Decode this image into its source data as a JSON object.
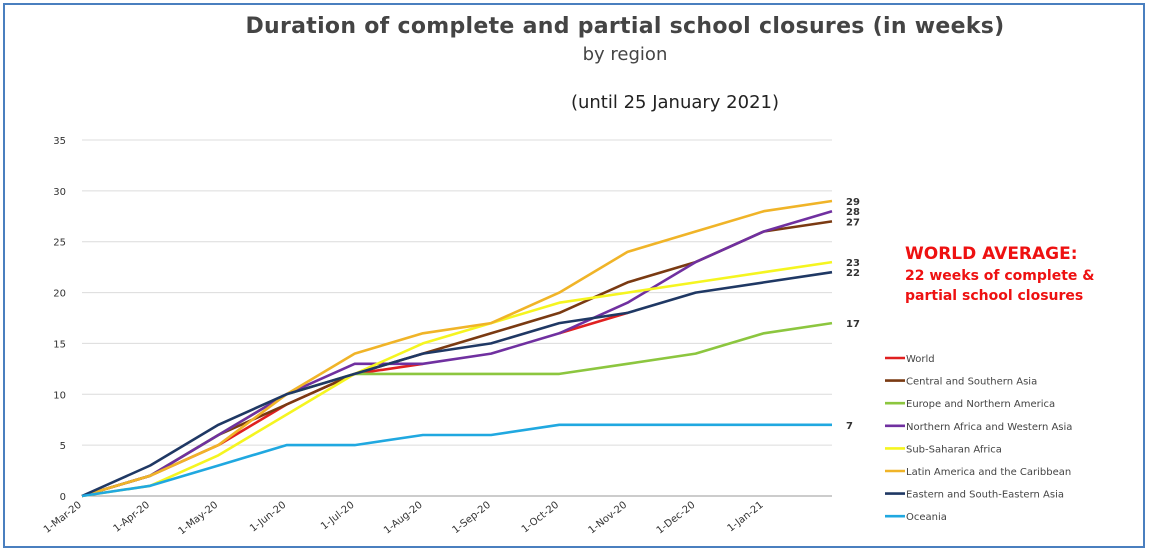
{
  "chart_data": {
    "type": "line",
    "title": "Duration of complete and partial school closures (in weeks)",
    "subtitle": "by region",
    "period_note": "(until 25 January 2021)",
    "x": [
      "1-Mar-20",
      "1-Apr-20",
      "1-May-20",
      "1-Jun-20",
      "1-Jul-20",
      "1-Aug-20",
      "1-Sep-20",
      "1-Oct-20",
      "1-Nov-20",
      "1-Dec-20",
      "1-Jan-21",
      "25-Jan-21"
    ],
    "x_tick_labels": [
      "1-Mar-20",
      "1-Apr-20",
      "1-May-20",
      "1-Jun-20",
      "1-Jul-20",
      "1-Aug-20",
      "1-Sep-20",
      "1-Oct-20",
      "1-Nov-20",
      "1-Dec-20",
      "1-Jan-21"
    ],
    "ylim": [
      0,
      35
    ],
    "yticks": [
      0,
      5,
      10,
      15,
      20,
      25,
      30,
      35
    ],
    "grid": true,
    "legend_position": "right",
    "series": [
      {
        "name": "World",
        "color": "#e02020",
        "values": [
          0,
          2,
          5,
          9,
          12,
          13,
          null,
          16,
          18,
          null,
          null,
          null
        ]
      },
      {
        "name": "Central and Southern Asia",
        "color": "#7a3a12",
        "values": [
          0,
          2,
          6,
          9,
          12,
          14,
          16,
          18,
          21,
          23,
          26,
          27
        ]
      },
      {
        "name": "Europe and Northern America",
        "color": "#8cc63f",
        "values": [
          0,
          2,
          6,
          10,
          12,
          12,
          12,
          12,
          13,
          14,
          16,
          17
        ]
      },
      {
        "name": "Northern Africa and Western Asia",
        "color": "#7030a0",
        "values": [
          0,
          2,
          6,
          10,
          13,
          13,
          14,
          16,
          19,
          23,
          26,
          28
        ]
      },
      {
        "name": "Sub-Saharan Africa",
        "color": "#f5f520",
        "values": [
          0,
          1,
          4,
          8,
          12,
          15,
          17,
          19,
          20,
          21,
          22,
          23
        ]
      },
      {
        "name": "Latin America and the Caribbean",
        "color": "#f0b428",
        "values": [
          0,
          2,
          5,
          10,
          14,
          16,
          17,
          20,
          24,
          26,
          28,
          29
        ]
      },
      {
        "name": "Eastern and South-Eastern Asia",
        "color": "#1f3864",
        "values": [
          0,
          3,
          7,
          10,
          12,
          14,
          15,
          17,
          18,
          20,
          21,
          22
        ]
      },
      {
        "name": "Oceania",
        "color": "#20a8e0",
        "values": [
          0,
          1,
          3,
          5,
          5,
          6,
          6,
          7,
          7,
          7,
          7,
          7
        ]
      }
    ],
    "end_labels": [
      {
        "text": "29",
        "value": 29
      },
      {
        "text": "28",
        "value": 28
      },
      {
        "text": "27",
        "value": 27
      },
      {
        "text": "23",
        "value": 23
      },
      {
        "text": "22",
        "value": 22
      },
      {
        "text": "17",
        "value": 17
      },
      {
        "text": "7",
        "value": 7
      }
    ]
  },
  "annotation": {
    "heading": "WORLD AVERAGE:",
    "line1": "22 weeks of complete &",
    "line2": "partial school closures"
  }
}
